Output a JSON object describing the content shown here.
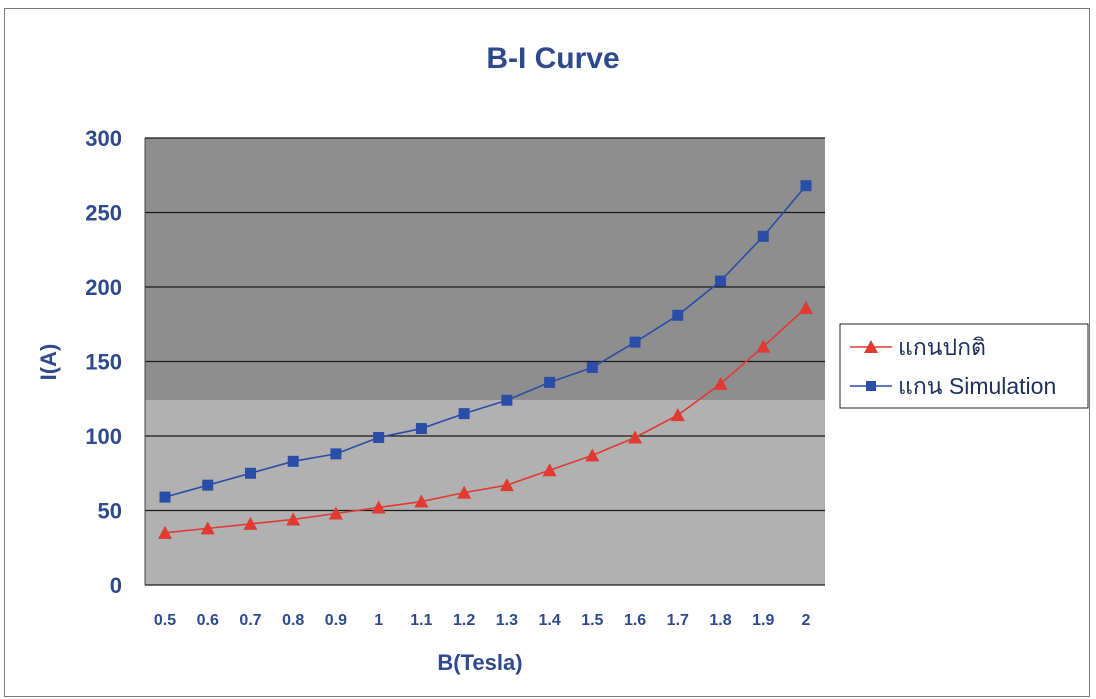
{
  "chart_data": {
    "type": "line",
    "title": "B-I Curve",
    "xlabel": "B(Tesla)",
    "ylabel": "I(A)",
    "categories": [
      "0.5",
      "0.6",
      "0.7",
      "0.8",
      "0.9",
      "1",
      "1.1",
      "1.2",
      "1.3",
      "1.4",
      "1.5",
      "1.6",
      "1.7",
      "1.8",
      "1.9",
      "2"
    ],
    "yticks": [
      "0",
      "50",
      "100",
      "150",
      "200",
      "250",
      "300"
    ],
    "ylim": [
      0,
      300
    ],
    "grid": true,
    "legend_position": "right",
    "series": [
      {
        "name": "แกนปกติ",
        "marker": "triangle",
        "color": "#e03a32",
        "values": [
          35,
          38,
          41,
          44,
          48,
          52,
          56,
          62,
          67,
          77,
          87,
          99,
          114,
          135,
          160,
          186
        ]
      },
      {
        "name": "แกน Simulation",
        "marker": "square",
        "color": "#2a4ea8",
        "values": [
          59,
          67,
          75,
          83,
          88,
          99,
          105,
          115,
          124,
          136,
          146,
          163,
          181,
          204,
          234,
          268
        ]
      }
    ],
    "colors": {
      "plot_background_upper": "#8e8e8e",
      "plot_background_lower": "#b1b1b1",
      "gridline": "#1a1a1a",
      "text": "#2e4a8c"
    }
  }
}
